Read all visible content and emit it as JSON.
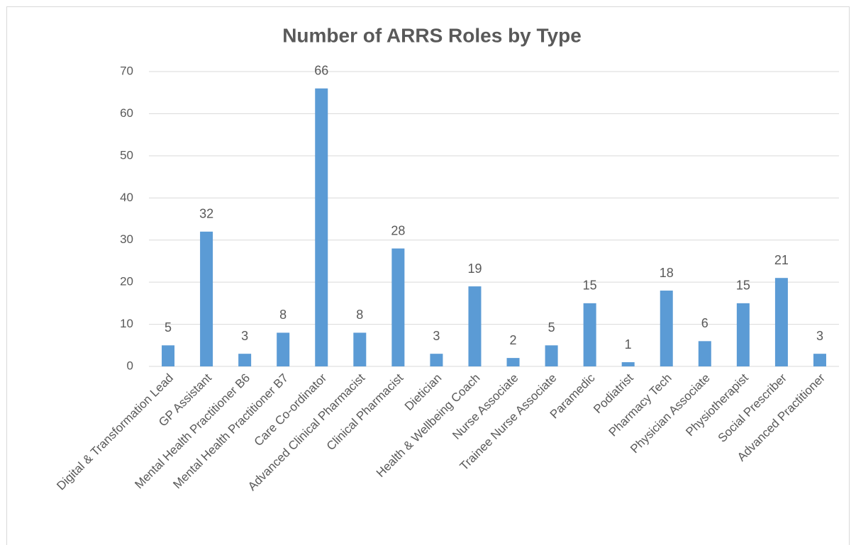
{
  "chart_data": {
    "type": "bar",
    "title": "Number of ARRS Roles by Type",
    "categories": [
      "Digital & Transformation Lead",
      "GP Assistant",
      "Mental Health Practitioner B6",
      "Mental Health Practitioner B7",
      "Care Co-ordinator",
      "Advanced Clinical Pharmacist",
      "Clinical Pharmacist",
      "Dietician",
      "Health & Wellbeing Coach",
      "Nurse Associate",
      "Trainee Nurse Associate",
      "Paramedic",
      "Podiatrist",
      "Pharmacy Tech",
      "Physician Associate",
      "Physiotherapist",
      "Social Prescriber",
      "Advanced Practitioner"
    ],
    "values": [
      5,
      32,
      3,
      8,
      66,
      8,
      28,
      3,
      19,
      2,
      5,
      15,
      1,
      18,
      6,
      15,
      21,
      3
    ],
    "color": "#5b9bd5",
    "ylim": [
      0,
      70
    ],
    "yticks": [
      0,
      10,
      20,
      30,
      40,
      50,
      60,
      70
    ],
    "grid": true
  }
}
